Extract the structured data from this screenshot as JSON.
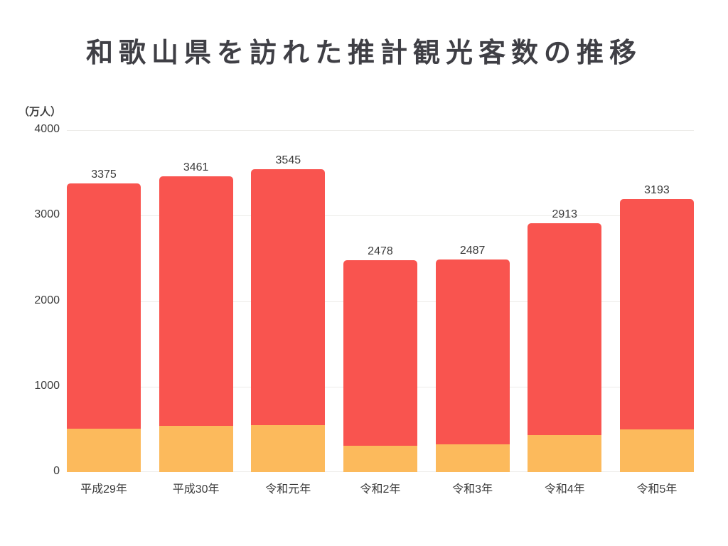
{
  "title": "和歌山県を訪れた推計観光客数の推移",
  "chart_data": {
    "type": "bar",
    "stacked": true,
    "title": "和歌山県を訪れた推計観光客数の推移",
    "unit_label": "（万人）",
    "categories": [
      "平成29年",
      "平成30年",
      "令和元年",
      "令和2年",
      "令和3年",
      "令和4年",
      "令和5年"
    ],
    "totals": [
      3375,
      3461,
      3545,
      2478,
      2487,
      2913,
      3193
    ],
    "bar_labels": [
      "3375",
      "3461",
      "3545",
      "2478",
      "2487",
      "2913",
      "3193"
    ],
    "series": [
      {
        "name": "lower-orange-segment",
        "color": "#fcba5c",
        "values": [
          505,
          540,
          550,
          310,
          325,
          435,
          495
        ]
      },
      {
        "name": "upper-red-segment",
        "color": "#f9544f",
        "values": [
          2870,
          2921,
          2995,
          2168,
          2162,
          2478,
          2698
        ]
      }
    ],
    "ylim": [
      0,
      4000
    ],
    "yticks": [
      0,
      1000,
      2000,
      3000,
      4000
    ],
    "grid": true,
    "legend": false,
    "colors": {
      "red": "#f9544f",
      "orange": "#fcba5c",
      "grid": "#ecebe8",
      "text": "#3d3d3d"
    }
  }
}
